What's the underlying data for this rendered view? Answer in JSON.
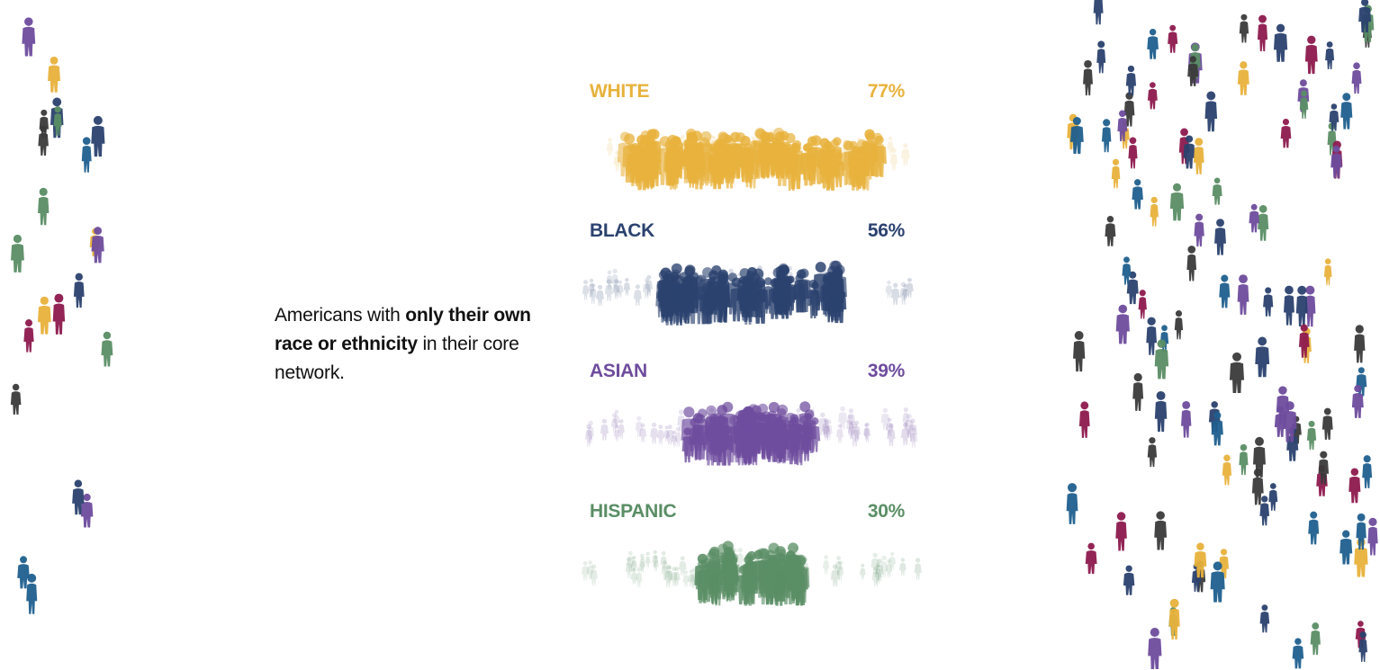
{
  "caption": {
    "part1": "Americans with ",
    "bold": "only their own race or ethnicity",
    "part2": " in their core network."
  },
  "chart_data": {
    "type": "bar",
    "categories": [
      "WHITE",
      "BLACK",
      "ASIAN",
      "HISPANIC"
    ],
    "values": [
      77,
      56,
      39,
      30
    ],
    "value_labels": [
      "77%",
      "56%",
      "39%",
      "30%"
    ],
    "unit": "%",
    "ylim": [
      0,
      100
    ],
    "colors": [
      "#e8b23c",
      "#2b426f",
      "#6e4c9e",
      "#5a8e65"
    ],
    "title": "",
    "xlabel": "",
    "ylabel": "",
    "grid": false,
    "legend": "none"
  },
  "decor": {
    "figure_colors": [
      "#e8b23c",
      "#2b426f",
      "#6e4c9e",
      "#5a8e65",
      "#1f5f8f",
      "#8e1a4e",
      "#3a3a3a"
    ]
  }
}
